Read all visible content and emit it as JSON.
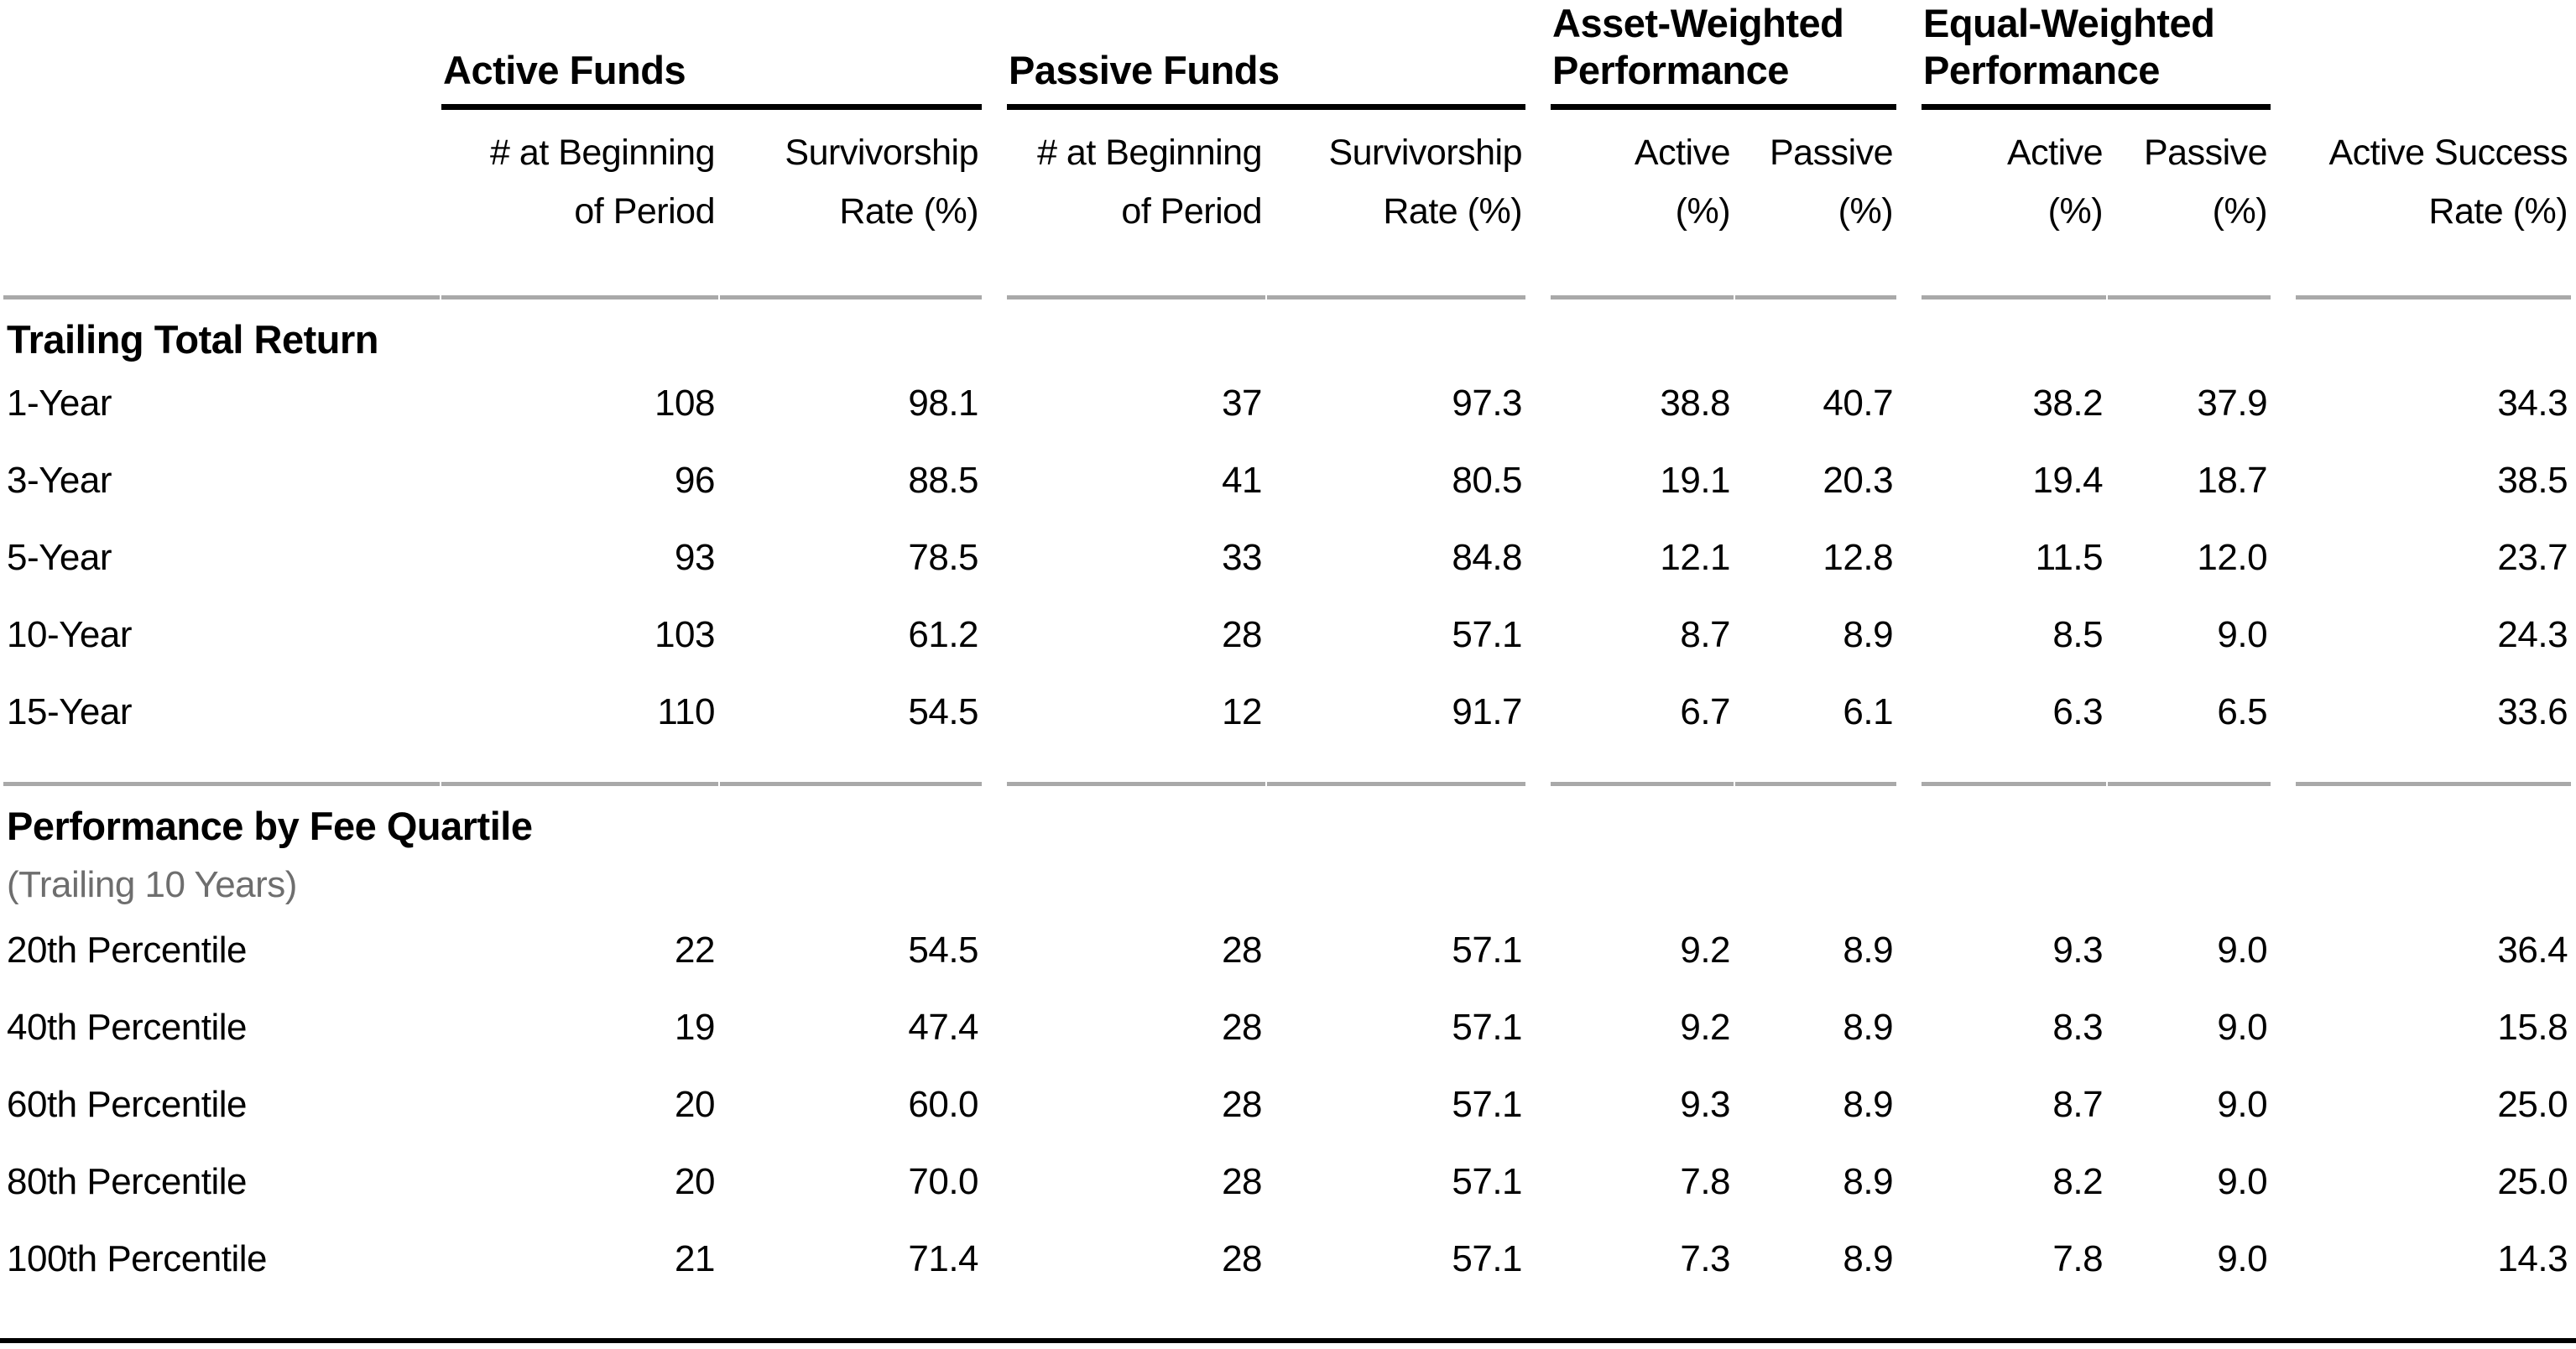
{
  "colors": {
    "text": "#000000",
    "subtitle_gray": "#6e6e6e",
    "heavy_rule": "#000000",
    "light_rule": "#a9a9a9",
    "background": "#ffffff"
  },
  "chart_data": {
    "type": "table",
    "column_groups": [
      {
        "label": "Active Funds",
        "columns": [
          "# at Beginning\nof Period",
          "Survivorship\nRate (%)"
        ]
      },
      {
        "label": "Passive Funds",
        "columns": [
          "# at Beginning\nof Period",
          "Survivorship\nRate (%)"
        ]
      },
      {
        "label": "Asset-Weighted\nPerformance",
        "columns": [
          "Active\n(%)",
          "Passive\n(%)"
        ]
      },
      {
        "label": "Equal-Weighted\nPerformance",
        "columns": [
          "Active\n(%)",
          "Passive\n(%)"
        ]
      },
      {
        "label": "",
        "columns": [
          "Active Success\nRate (%)"
        ]
      }
    ],
    "sections": [
      {
        "title": "Trailing Total Return",
        "subtitle": "",
        "rows": [
          {
            "label": "1-Year",
            "values": [
              "108",
              "98.1",
              "37",
              "97.3",
              "38.8",
              "40.7",
              "38.2",
              "37.9",
              "34.3"
            ]
          },
          {
            "label": "3-Year",
            "values": [
              "96",
              "88.5",
              "41",
              "80.5",
              "19.1",
              "20.3",
              "19.4",
              "18.7",
              "38.5"
            ]
          },
          {
            "label": "5-Year",
            "values": [
              "93",
              "78.5",
              "33",
              "84.8",
              "12.1",
              "12.8",
              "11.5",
              "12.0",
              "23.7"
            ]
          },
          {
            "label": "10-Year",
            "values": [
              "103",
              "61.2",
              "28",
              "57.1",
              "8.7",
              "8.9",
              "8.5",
              "9.0",
              "24.3"
            ]
          },
          {
            "label": "15-Year",
            "values": [
              "110",
              "54.5",
              "12",
              "91.7",
              "6.7",
              "6.1",
              "6.3",
              "6.5",
              "33.6"
            ]
          }
        ]
      },
      {
        "title": "Performance by Fee Quartile",
        "subtitle": "(Trailing 10 Years)",
        "rows": [
          {
            "label": "20th Percentile",
            "values": [
              "22",
              "54.5",
              "28",
              "57.1",
              "9.2",
              "8.9",
              "9.3",
              "9.0",
              "36.4"
            ]
          },
          {
            "label": "40th Percentile",
            "values": [
              "19",
              "47.4",
              "28",
              "57.1",
              "9.2",
              "8.9",
              "8.3",
              "9.0",
              "15.8"
            ]
          },
          {
            "label": "60th Percentile",
            "values": [
              "20",
              "60.0",
              "28",
              "57.1",
              "9.3",
              "8.9",
              "8.7",
              "9.0",
              "25.0"
            ]
          },
          {
            "label": "80th Percentile",
            "values": [
              "20",
              "70.0",
              "28",
              "57.1",
              "7.8",
              "8.9",
              "8.2",
              "9.0",
              "25.0"
            ]
          },
          {
            "label": "100th Percentile",
            "values": [
              "21",
              "71.4",
              "28",
              "57.1",
              "7.3",
              "8.9",
              "7.8",
              "9.0",
              "14.3"
            ]
          }
        ]
      }
    ]
  }
}
